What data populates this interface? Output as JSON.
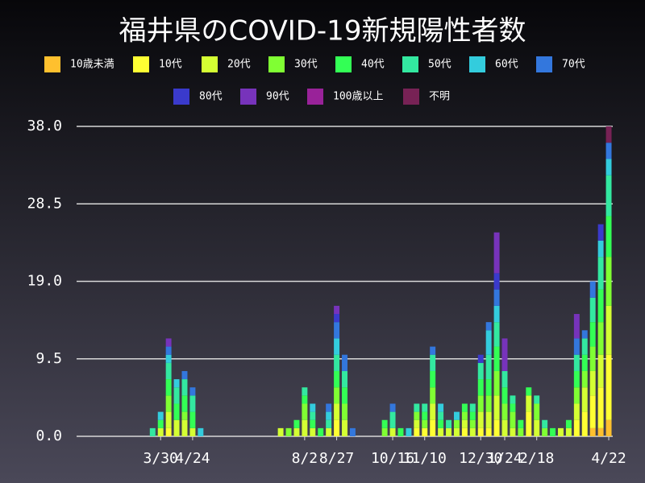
{
  "chart_data": {
    "type": "stacked-bar",
    "title": "福井県のCOVID-19新規陽性者数",
    "categories": [
      null,
      null,
      null,
      null,
      null,
      null,
      null,
      null,
      null,
      null,
      "3/30",
      null,
      null,
      null,
      "4/24",
      null,
      null,
      null,
      null,
      null,
      null,
      null,
      null,
      null,
      null,
      null,
      null,
      null,
      "8/2",
      null,
      null,
      null,
      "8/27",
      null,
      null,
      null,
      null,
      null,
      null,
      "10/16",
      null,
      null,
      null,
      "11/10",
      null,
      null,
      null,
      null,
      null,
      null,
      "12/30",
      null,
      null,
      "1/24",
      null,
      null,
      null,
      "2/18",
      null,
      null,
      null,
      null,
      null,
      null,
      null,
      null,
      "4/22"
    ],
    "ylim": [
      0,
      38
    ],
    "yticks": [
      {
        "value": 0,
        "label": "0.0"
      },
      9.5,
      {
        "value": 19,
        "label": "19.0"
      },
      28.5,
      {
        "value": 38,
        "label": "38.0"
      }
    ],
    "grid": true,
    "series": [
      {
        "name": "10歳未満",
        "color": "#ffc02e",
        "values": [
          0,
          0,
          0,
          0,
          0,
          0,
          0,
          0,
          0,
          0,
          0,
          0,
          0,
          0,
          0,
          0,
          0,
          0,
          0,
          0,
          0,
          0,
          0,
          0,
          0,
          0,
          0,
          0,
          0,
          0,
          0,
          0,
          0,
          0,
          0,
          0,
          0,
          0,
          0,
          0,
          0,
          0,
          0,
          0,
          0,
          0,
          0,
          0,
          0,
          0,
          0,
          0,
          0,
          0,
          0,
          0,
          0,
          0,
          0,
          0,
          0,
          0,
          0,
          0,
          1,
          1,
          2
        ]
      },
      {
        "name": "10代",
        "color": "#ffff33",
        "values": [
          0,
          0,
          0,
          0,
          0,
          0,
          0,
          0,
          0,
          0,
          0,
          1,
          0,
          0,
          0,
          0,
          0,
          0,
          0,
          0,
          0,
          0,
          0,
          0,
          0,
          0,
          0,
          0,
          0,
          0,
          0,
          0,
          2,
          0,
          0,
          0,
          0,
          0,
          0,
          0,
          0,
          0,
          1,
          1,
          2,
          0,
          0,
          0,
          1,
          0,
          1,
          1,
          2,
          0,
          0,
          0,
          3,
          0,
          0,
          0,
          0,
          0,
          2,
          3,
          4,
          5,
          8
        ]
      },
      {
        "name": "20代",
        "color": "#d4ff33",
        "values": [
          0,
          0,
          0,
          0,
          0,
          0,
          0,
          0,
          0,
          0,
          1,
          2,
          2,
          2,
          1,
          0,
          0,
          0,
          0,
          0,
          0,
          0,
          0,
          0,
          0,
          1,
          0,
          1,
          2,
          1,
          0,
          1,
          2,
          2,
          0,
          0,
          0,
          0,
          0,
          1,
          0,
          0,
          1,
          0,
          2,
          1,
          1,
          1,
          1,
          1,
          2,
          2,
          3,
          2,
          1,
          0,
          2,
          2,
          0,
          0,
          1,
          1,
          2,
          3,
          3,
          4,
          6
        ]
      },
      {
        "name": "30代",
        "color": "#80ff33",
        "values": [
          0,
          0,
          0,
          0,
          0,
          0,
          0,
          0,
          0,
          0,
          0,
          2,
          0,
          1,
          0,
          0,
          0,
          0,
          0,
          0,
          0,
          0,
          0,
          0,
          0,
          0,
          1,
          0,
          2,
          0,
          0,
          0,
          2,
          2,
          0,
          0,
          0,
          0,
          1,
          0,
          0,
          0,
          1,
          1,
          2,
          0,
          0,
          1,
          1,
          1,
          2,
          2,
          3,
          2,
          2,
          1,
          0,
          2,
          1,
          0,
          0,
          0,
          2,
          2,
          3,
          4,
          6
        ]
      },
      {
        "name": "40代",
        "color": "#33ff55",
        "values": [
          0,
          0,
          0,
          0,
          0,
          0,
          0,
          0,
          0,
          0,
          1,
          2,
          2,
          2,
          2,
          0,
          0,
          0,
          0,
          0,
          0,
          0,
          0,
          0,
          0,
          0,
          0,
          1,
          1,
          1,
          1,
          0,
          2,
          2,
          0,
          0,
          0,
          0,
          1,
          0,
          1,
          0,
          0,
          1,
          2,
          1,
          0,
          0,
          1,
          1,
          2,
          2,
          3,
          2,
          1,
          1,
          1,
          0,
          0,
          1,
          0,
          1,
          2,
          2,
          3,
          4,
          5
        ]
      },
      {
        "name": "50代",
        "color": "#33e8a0",
        "values": [
          0,
          0,
          0,
          0,
          0,
          0,
          0,
          0,
          0,
          1,
          0,
          2,
          2,
          2,
          2,
          0,
          0,
          0,
          0,
          0,
          0,
          0,
          0,
          0,
          0,
          0,
          0,
          0,
          1,
          1,
          0,
          1,
          2,
          2,
          0,
          0,
          0,
          0,
          0,
          2,
          0,
          0,
          1,
          1,
          2,
          1,
          1,
          0,
          0,
          1,
          2,
          3,
          3,
          2,
          1,
          0,
          0,
          1,
          1,
          0,
          0,
          0,
          2,
          2,
          3,
          4,
          5
        ]
      },
      {
        "name": "60代",
        "color": "#33ccdd",
        "values": [
          0,
          0,
          0,
          0,
          0,
          0,
          0,
          0,
          0,
          0,
          1,
          1,
          1,
          0,
          0,
          1,
          0,
          0,
          0,
          0,
          0,
          0,
          0,
          0,
          0,
          0,
          0,
          0,
          0,
          1,
          0,
          1,
          2,
          0,
          0,
          0,
          0,
          0,
          0,
          0,
          0,
          1,
          0,
          0,
          0,
          1,
          0,
          1,
          0,
          0,
          0,
          3,
          2,
          0,
          0,
          0,
          0,
          0,
          0,
          0,
          0,
          0,
          0,
          0,
          0,
          2,
          2
        ]
      },
      {
        "name": "70代",
        "color": "#3377dd",
        "values": [
          0,
          0,
          0,
          0,
          0,
          0,
          0,
          0,
          0,
          0,
          0,
          1,
          0,
          1,
          1,
          0,
          0,
          0,
          0,
          0,
          0,
          0,
          0,
          0,
          0,
          0,
          0,
          0,
          0,
          0,
          0,
          1,
          2,
          2,
          1,
          0,
          0,
          0,
          0,
          1,
          0,
          0,
          0,
          0,
          1,
          0,
          0,
          0,
          0,
          0,
          0,
          1,
          2,
          0,
          0,
          0,
          0,
          0,
          0,
          0,
          0,
          0,
          2,
          1,
          2,
          0,
          2
        ]
      },
      {
        "name": "80代",
        "color": "#3a3acc",
        "values": [
          0,
          0,
          0,
          0,
          0,
          0,
          0,
          0,
          0,
          0,
          0,
          0,
          0,
          0,
          0,
          0,
          0,
          0,
          0,
          0,
          0,
          0,
          0,
          0,
          0,
          0,
          0,
          0,
          0,
          0,
          0,
          0,
          1,
          0,
          0,
          0,
          0,
          0,
          0,
          0,
          0,
          0,
          0,
          0,
          0,
          0,
          0,
          0,
          0,
          0,
          1,
          0,
          2,
          0,
          0,
          0,
          0,
          0,
          0,
          0,
          0,
          0,
          0,
          0,
          0,
          2,
          0
        ]
      },
      {
        "name": "90代",
        "color": "#7733bb",
        "values": [
          0,
          0,
          0,
          0,
          0,
          0,
          0,
          0,
          0,
          0,
          0,
          1,
          0,
          0,
          0,
          0,
          0,
          0,
          0,
          0,
          0,
          0,
          0,
          0,
          0,
          0,
          0,
          0,
          0,
          0,
          0,
          0,
          1,
          0,
          0,
          0,
          0,
          0,
          0,
          0,
          0,
          0,
          0,
          0,
          0,
          0,
          0,
          0,
          0,
          0,
          0,
          0,
          5,
          4,
          0,
          0,
          0,
          0,
          0,
          0,
          0,
          0,
          3,
          0,
          0,
          0,
          0
        ]
      },
      {
        "name": "100歳以上",
        "color": "#992299",
        "values": [
          0,
          0,
          0,
          0,
          0,
          0,
          0,
          0,
          0,
          0,
          0,
          0,
          0,
          0,
          0,
          0,
          0,
          0,
          0,
          0,
          0,
          0,
          0,
          0,
          0,
          0,
          0,
          0,
          0,
          0,
          0,
          0,
          0,
          0,
          0,
          0,
          0,
          0,
          0,
          0,
          0,
          0,
          0,
          0,
          0,
          0,
          0,
          0,
          0,
          0,
          0,
          0,
          0,
          0,
          0,
          0,
          0,
          0,
          0,
          0,
          0,
          0,
          0,
          0,
          0,
          0,
          0
        ]
      },
      {
        "name": "不明",
        "color": "#772255",
        "values": [
          0,
          0,
          0,
          0,
          0,
          0,
          0,
          0,
          0,
          0,
          0,
          0,
          0,
          0,
          0,
          0,
          0,
          0,
          0,
          0,
          0,
          0,
          0,
          0,
          0,
          0,
          0,
          0,
          0,
          0,
          0,
          0,
          0,
          0,
          0,
          0,
          0,
          0,
          0,
          0,
          0,
          0,
          0,
          0,
          0,
          0,
          0,
          0,
          0,
          0,
          0,
          0,
          0,
          0,
          0,
          0,
          0,
          0,
          0,
          0,
          0,
          0,
          0,
          0,
          0,
          0,
          2
        ]
      }
    ]
  }
}
